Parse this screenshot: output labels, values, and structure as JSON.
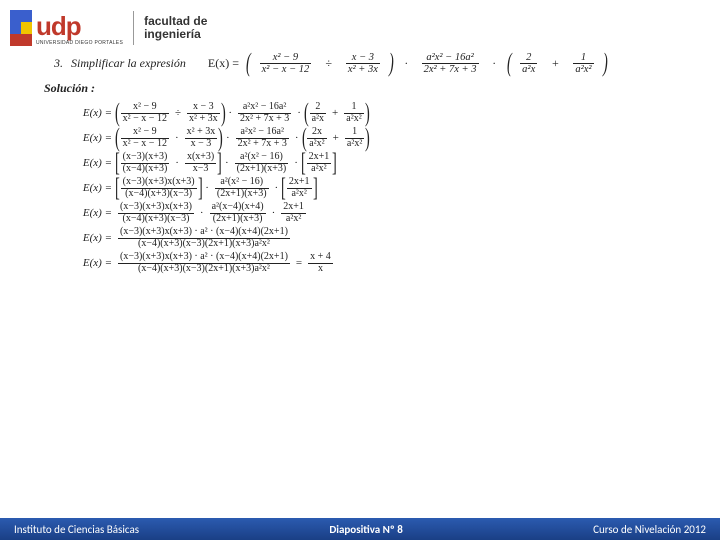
{
  "header": {
    "logo_text": "udp",
    "univ_sub": "UNIVERSIDAD DIEGO PORTALES",
    "faculty_l1": "facultad de",
    "faculty_l2": "ingeniería"
  },
  "problem": {
    "number": "3.",
    "verb": "Simplificar la expresión",
    "lhs": "E(x) =",
    "t1n": "x² − 9",
    "t1d": "x² − x − 12",
    "t2n": "x − 3",
    "t2d": "x² + 3x",
    "t3n": "a²x² − 16a²",
    "t3d": "2x² + 7x + 3",
    "t4n": "2",
    "t4d": "a²x",
    "t5n": "1",
    "t5d": "a²x²",
    "solution_label": "Solución :"
  },
  "steps": [
    {
      "lhs": "E(x) =",
      "groups": [
        {
          "open": "(",
          "items": [
            {
              "n": "x² − 9",
              "d": "x² − x − 12"
            },
            {
              "op": "÷"
            },
            {
              "n": "x − 3",
              "d": "x² + 3x"
            }
          ],
          "close": ")"
        },
        {
          "op": "·"
        },
        {
          "items": [
            {
              "n": "a²x² − 16a²",
              "d": "2x² + 7x + 3"
            }
          ]
        },
        {
          "op": "·"
        },
        {
          "open": "(",
          "items": [
            {
              "n": "2",
              "d": "a²x"
            },
            {
              "op": "+"
            },
            {
              "n": "1",
              "d": "a²x²"
            }
          ],
          "close": ")"
        }
      ]
    },
    {
      "lhs": "E(x) =",
      "groups": [
        {
          "open": "(",
          "items": [
            {
              "n": "x² − 9",
              "d": "x² − x − 12"
            },
            {
              "op": "·"
            },
            {
              "n": "x² + 3x",
              "d": "x − 3"
            }
          ],
          "close": ")"
        },
        {
          "op": "·"
        },
        {
          "items": [
            {
              "n": "a²x² − 16a²",
              "d": "2x² + 7x + 3"
            }
          ]
        },
        {
          "op": "·"
        },
        {
          "open": "(",
          "items": [
            {
              "n": "2x",
              "d": "a²x²"
            },
            {
              "op": "+"
            },
            {
              "n": "1",
              "d": "a²x²"
            }
          ],
          "close": ")"
        }
      ]
    },
    {
      "lhs": "E(x) =",
      "groups": [
        {
          "open": "[",
          "items": [
            {
              "n": "(x−3)(x+3)",
              "d": "(x−4)(x+3)"
            },
            {
              "op": "·"
            },
            {
              "n": "x(x+3)",
              "d": "x−3"
            }
          ],
          "close": "]"
        },
        {
          "op": "·"
        },
        {
          "items": [
            {
              "n": "a²(x² − 16)",
              "d": "(2x+1)(x+3)"
            }
          ]
        },
        {
          "op": "·"
        },
        {
          "open": "[",
          "items": [
            {
              "n": "2x+1",
              "d": "a²x²"
            }
          ],
          "close": "]"
        }
      ]
    },
    {
      "lhs": "E(x) =",
      "groups": [
        {
          "open": "[",
          "items": [
            {
              "n": "(x−3)(x+3)x(x+3)",
              "d": "(x−4)(x+3)(x−3)"
            }
          ],
          "close": "]"
        },
        {
          "op": "·"
        },
        {
          "items": [
            {
              "n": "a²(x² − 16)",
              "d": "(2x+1)(x+3)"
            }
          ]
        },
        {
          "op": "·"
        },
        {
          "open": "[",
          "items": [
            {
              "n": "2x+1",
              "d": "a²x²"
            }
          ],
          "close": "]"
        }
      ]
    },
    {
      "lhs": "E(x) =",
      "groups": [
        {
          "items": [
            {
              "n": "(x−3)(x+3)x(x+3)",
              "d": "(x−4)(x+3)(x−3)"
            }
          ]
        },
        {
          "op": "·"
        },
        {
          "items": [
            {
              "n": "a²(x−4)(x+4)",
              "d": "(2x+1)(x+3)"
            }
          ]
        },
        {
          "op": "·"
        },
        {
          "items": [
            {
              "n": "2x+1",
              "d": "a²x²"
            }
          ]
        }
      ]
    },
    {
      "lhs": "E(x) =",
      "groups": [
        {
          "items": [
            {
              "n": "(x−3)(x+3)x(x+3) · a² · (x−4)(x+4)(2x+1)",
              "d": "(x−4)(x+3)(x−3)(2x+1)(x+3)a²x²"
            }
          ]
        }
      ]
    },
    {
      "lhs": "E(x) =",
      "groups": [
        {
          "items": [
            {
              "n": "(x−3)(x+3)x(x+3) · a² · (x−4)(x+4)(2x+1)",
              "d": "(x−4)(x+3)(x−3)(2x+1)(x+3)a²x²"
            }
          ]
        },
        {
          "op": "="
        },
        {
          "items": [
            {
              "n": "x + 4",
              "d": "x"
            }
          ]
        }
      ]
    }
  ],
  "footer": {
    "left": "Instituto de Ciencias Básicas",
    "center": "Diapositiva Nº  8",
    "right": "Curso de Nivelación 2012"
  },
  "colors": {
    "footer_bg": "#1a4a9c",
    "text": "#222222"
  }
}
